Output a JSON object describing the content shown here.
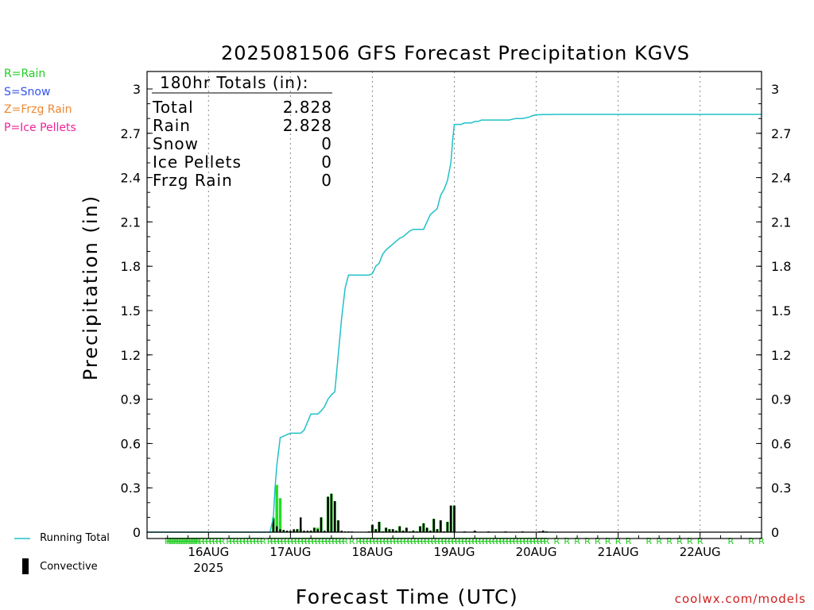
{
  "chart_data": {
    "type": "line",
    "title": "2025081506 GFS Forecast Precipitation KGVS",
    "xlabel": "Forecast Time (UTC)",
    "ylabel": "Precipitation (in)",
    "ylim": [
      0,
      3
    ],
    "yticks": [
      0,
      0.3,
      0.6,
      0.9,
      1.2,
      1.5,
      1.8,
      2.1,
      2.4,
      2.7,
      3
    ],
    "ytick_labels": [
      "0",
      "0.3",
      "0.6",
      "0.9",
      "1.2",
      "1.5",
      "1.8",
      "2.1",
      "2.4",
      "2.7",
      "3"
    ],
    "xlim_hours": [
      0,
      180
    ],
    "x_ticks": [
      {
        "hour": 18,
        "label": "16AUG",
        "sublabel": "2025"
      },
      {
        "hour": 42,
        "label": "17AUG",
        "sublabel": ""
      },
      {
        "hour": 66,
        "label": "18AUG",
        "sublabel": ""
      },
      {
        "hour": 90,
        "label": "19AUG",
        "sublabel": ""
      },
      {
        "hour": 114,
        "label": "20AUG",
        "sublabel": ""
      },
      {
        "hour": 138,
        "label": "21AUG",
        "sublabel": ""
      },
      {
        "hour": 162,
        "label": "22AUG",
        "sublabel": ""
      }
    ],
    "grid": "vertical dotted at day boundaries",
    "totals_box": {
      "header": "180hr Totals (in):",
      "rows": [
        {
          "label": "Total",
          "value": "2.828"
        },
        {
          "label": "Rain",
          "value": "2.828"
        },
        {
          "label": "Snow",
          "value": "0"
        },
        {
          "label": "Ice Pellets",
          "value": "0"
        },
        {
          "label": "Frzg Rain",
          "value": "0"
        }
      ]
    },
    "precip_type_legend": [
      {
        "text": "R=Rain",
        "color": "#22cc22"
      },
      {
        "text": "S=Snow",
        "color": "#3355ee"
      },
      {
        "text": "Z=Frzg Rain",
        "color": "#ee8833"
      },
      {
        "text": "P=Ice Pellets",
        "color": "#ee2299"
      }
    ],
    "series": [
      {
        "name": "Running Total",
        "color": "#20c0c8",
        "x": [
          0,
          36,
          37,
          37.5,
          38,
          39,
          40,
          41,
          42,
          43,
          45,
          46,
          48,
          49,
          50,
          51,
          52,
          53,
          54,
          55,
          56,
          57,
          58,
          59,
          60,
          62,
          63,
          64,
          65,
          66,
          67,
          68,
          69,
          70,
          71,
          72,
          73,
          74,
          75,
          76,
          77,
          78,
          80,
          81,
          82,
          83,
          84,
          85,
          86,
          87,
          88,
          89,
          89.5,
          90,
          91,
          92,
          93,
          94,
          95,
          96,
          97,
          98,
          100,
          102,
          104,
          106,
          108,
          110,
          112,
          113,
          114,
          115,
          116,
          117,
          118,
          120,
          126,
          132,
          140,
          150,
          160,
          170,
          180
        ],
        "values": [
          0,
          0,
          0.1,
          0.3,
          0.45,
          0.64,
          0.65,
          0.66,
          0.67,
          0.67,
          0.67,
          0.69,
          0.8,
          0.8,
          0.8,
          0.82,
          0.85,
          0.9,
          0.93,
          0.95,
          1.2,
          1.45,
          1.65,
          1.74,
          1.74,
          1.74,
          1.74,
          1.74,
          1.74,
          1.75,
          1.8,
          1.82,
          1.88,
          1.91,
          1.93,
          1.95,
          1.97,
          1.99,
          2.0,
          2.02,
          2.04,
          2.05,
          2.05,
          2.05,
          2.1,
          2.15,
          2.17,
          2.19,
          2.28,
          2.32,
          2.38,
          2.5,
          2.65,
          2.76,
          2.76,
          2.76,
          2.77,
          2.77,
          2.77,
          2.78,
          2.78,
          2.79,
          2.79,
          2.79,
          2.79,
          2.79,
          2.8,
          2.8,
          2.81,
          2.82,
          2.825,
          2.826,
          2.827,
          2.827,
          2.827,
          2.828,
          2.828,
          2.828,
          2.828,
          2.828,
          2.828,
          2.828,
          2.828
        ]
      },
      {
        "name": "Convective",
        "type": "bar",
        "color": "#000000",
        "x": [
          37,
          38,
          39,
          40,
          41,
          42,
          43,
          44,
          45,
          46,
          47,
          48,
          49,
          50,
          51,
          52,
          53,
          54,
          55,
          56,
          57,
          58,
          59,
          60,
          65,
          66,
          67,
          68,
          69,
          70,
          71,
          72,
          73,
          74,
          75,
          76,
          77,
          78,
          79,
          80,
          81,
          82,
          83,
          84,
          85,
          86,
          87,
          88,
          89,
          90,
          93,
          96,
          100,
          105,
          110,
          115,
          116,
          117
        ],
        "values": [
          0.09,
          0.04,
          0.02,
          0.015,
          0.01,
          0.01,
          0.02,
          0.02,
          0.1,
          0.01,
          0.01,
          0.01,
          0.03,
          0.02,
          0.1,
          0.01,
          0.24,
          0.26,
          0.21,
          0.08,
          0.01,
          0.005,
          0.005,
          0.005,
          0.005,
          0.05,
          0.02,
          0.07,
          0.005,
          0.03,
          0.02,
          0.02,
          0.01,
          0.04,
          0.01,
          0.03,
          0.005,
          0.01,
          0.005,
          0.04,
          0.06,
          0.03,
          0.01,
          0.09,
          0.02,
          0.08,
          0.005,
          0.07,
          0.18,
          0.18,
          0.005,
          0.01,
          0.005,
          0.005,
          0.005,
          0.005,
          0.01,
          0.005
        ]
      },
      {
        "name": "Rain (total)",
        "type": "bar",
        "color": "#22dd22",
        "x": [
          37,
          38,
          39,
          40,
          41,
          42,
          43,
          44,
          45,
          46,
          47,
          48,
          49,
          50,
          51,
          52,
          53,
          54,
          55,
          56,
          65,
          66,
          67,
          68,
          69,
          70,
          71,
          72,
          73,
          74,
          75,
          76,
          77,
          78,
          79,
          80,
          81,
          82,
          83,
          84,
          85,
          86,
          87,
          88,
          89,
          90,
          93,
          96,
          100,
          105,
          110,
          115,
          116,
          117
        ],
        "values": [
          0.1,
          0.32,
          0.23,
          0.01,
          0.005,
          0.005,
          0.01,
          0.02,
          0.02,
          0.005,
          0.005,
          0.01,
          0.03,
          0.03,
          0.1,
          0.005,
          0.24,
          0.26,
          0.21,
          0.08,
          0.005,
          0.05,
          0.02,
          0.07,
          0.005,
          0.03,
          0.02,
          0.02,
          0.01,
          0.04,
          0.01,
          0.03,
          0.005,
          0.01,
          0.005,
          0.04,
          0.06,
          0.03,
          0.01,
          0.09,
          0.02,
          0.08,
          0.005,
          0.07,
          0.18,
          0.18,
          0.005,
          0.01,
          0.005,
          0.005,
          0.005,
          0.005,
          0.01,
          0.005
        ]
      }
    ],
    "rain_markers": {
      "symbol": "R",
      "color": "#22cc22",
      "hours": [
        6,
        6.5,
        7,
        7.5,
        8,
        8.5,
        9,
        9.5,
        10,
        10.5,
        11,
        11.5,
        12,
        12.5,
        13,
        13.5,
        14,
        14.5,
        15,
        16,
        17,
        18,
        19,
        20,
        21,
        22,
        24,
        25,
        26,
        27,
        28,
        29,
        30,
        31,
        32,
        33,
        34,
        36,
        37,
        38,
        39,
        40,
        41,
        42,
        43,
        44,
        45,
        46,
        47,
        48,
        49,
        50,
        51,
        52,
        53,
        54,
        55,
        56,
        57,
        58,
        60,
        62,
        63,
        64,
        65,
        66,
        67,
        68,
        69,
        70,
        71,
        72,
        73,
        74,
        75,
        76,
        77,
        78,
        79,
        80,
        81,
        82,
        83,
        84,
        85,
        86,
        87,
        88,
        89,
        90,
        91,
        92,
        93,
        94,
        95,
        96,
        97,
        98,
        99,
        100,
        101,
        102,
        103,
        104,
        105,
        106,
        107,
        108,
        109,
        110,
        111,
        112,
        113,
        114,
        115,
        116,
        117,
        120,
        123,
        126,
        129,
        132,
        135,
        138,
        141,
        147,
        150,
        153,
        156,
        159,
        162,
        171,
        177,
        180
      ]
    }
  },
  "legend": {
    "running_total": "Running Total",
    "convective": "Convective"
  },
  "credit": "coolwx.com/models"
}
